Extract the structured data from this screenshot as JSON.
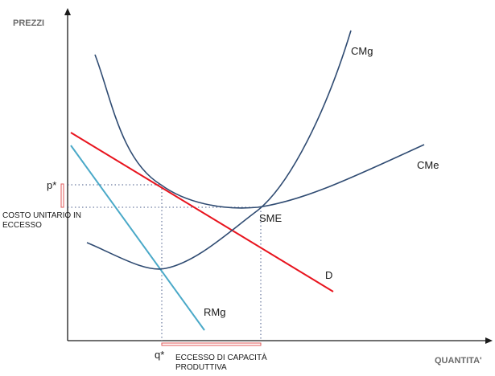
{
  "axes": {
    "y_label": "PREZZI",
    "x_label": "QUANTITA'"
  },
  "curves": {
    "cmg": "CMg",
    "cme": "CMe",
    "demand": "D",
    "rmg": "RMg"
  },
  "points": {
    "sme": "SME",
    "p_star": "p*",
    "q_star": "q*"
  },
  "notes": {
    "excess_cost": "COSTO UNITARIO IN ECCESSO",
    "excess_capacity_line1": "ECCESSO DI CAPACITÀ",
    "excess_capacity_line2": "PRODUTTIVA"
  },
  "colors": {
    "cost_curves": "#2f4b72",
    "demand": "#e8141e",
    "rmg": "#4aa9c8",
    "axes": "#1a1a1a",
    "guides": "#4a5c8a",
    "highlight": "#e05a5a"
  }
}
